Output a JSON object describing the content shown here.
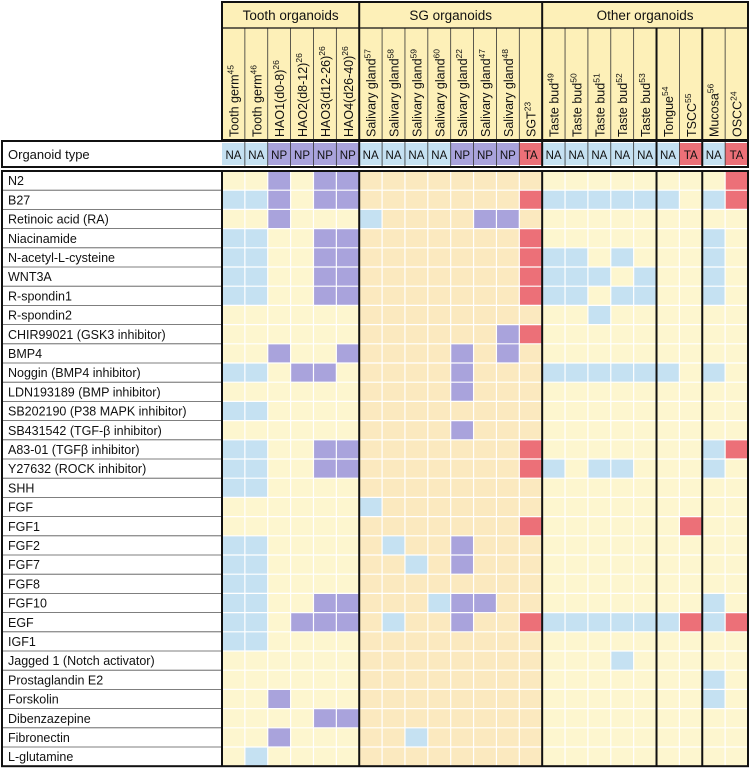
{
  "chart_data": {
    "type": "heatmap",
    "row_header": "Organoid type",
    "groups": [
      {
        "name": "Tooth organoids",
        "columns": [
          0,
          1,
          2,
          3,
          4,
          5
        ]
      },
      {
        "name": "SG organoids",
        "columns": [
          6,
          7,
          8,
          9,
          10,
          11,
          12,
          13
        ]
      },
      {
        "name": "Other organoids",
        "columns": [
          14,
          15,
          16,
          17,
          18,
          19,
          20,
          21,
          22
        ]
      }
    ],
    "columns": [
      {
        "label": "Tooth germ",
        "sup": "45",
        "type": "NA"
      },
      {
        "label": "Tooth germ",
        "sup": "46",
        "type": "NA"
      },
      {
        "label": "HAO1(d0-8)",
        "sup": "26",
        "type": "NP"
      },
      {
        "label": "HAO2(d8-12)",
        "sup": "26",
        "type": "NP"
      },
      {
        "label": "HAO3(d12-26)",
        "sup": "26",
        "type": "NP"
      },
      {
        "label": "HAO4(d26-40)",
        "sup": "26",
        "type": "NP"
      },
      {
        "label": "Salivary gland",
        "sup": "57",
        "type": "NA"
      },
      {
        "label": "Salivary gland",
        "sup": "58",
        "type": "NA"
      },
      {
        "label": "Salivary gland",
        "sup": "59",
        "type": "NA"
      },
      {
        "label": "Salivary gland",
        "sup": "60",
        "type": "NA"
      },
      {
        "label": "Salivary gland",
        "sup": "22",
        "type": "NP"
      },
      {
        "label": "Salivary gland",
        "sup": "47",
        "type": "NP"
      },
      {
        "label": "Salivary gland",
        "sup": "48",
        "type": "NP"
      },
      {
        "label": "SGT",
        "sup": "23",
        "type": "TA"
      },
      {
        "label": "Taste bud",
        "sup": "49",
        "type": "NA"
      },
      {
        "label": "Taste bud",
        "sup": "50",
        "type": "NA"
      },
      {
        "label": "Taste bud",
        "sup": "51",
        "type": "NA"
      },
      {
        "label": "Taste bud",
        "sup": "52",
        "type": "NA"
      },
      {
        "label": "Taste bud",
        "sup": "53",
        "type": "NA"
      },
      {
        "label": "Tongue",
        "sup": "54",
        "type": "NA"
      },
      {
        "label": "TSCC",
        "sup": "55",
        "type": "TA"
      },
      {
        "label": "Mucosa",
        "sup": "56",
        "type": "NA"
      },
      {
        "label": "OSCC",
        "sup": "24",
        "type": "TA"
      }
    ],
    "rows": [
      {
        "label": "N2",
        "present": [
          2,
          4,
          5,
          22
        ]
      },
      {
        "label": "B27",
        "present": [
          0,
          1,
          2,
          4,
          5,
          13,
          14,
          15,
          16,
          17,
          18,
          19,
          21,
          22
        ]
      },
      {
        "label": "Retinoic acid (RA)",
        "present": [
          2,
          6,
          11,
          12
        ]
      },
      {
        "label": "Niacinamide",
        "present": [
          0,
          1,
          4,
          5,
          13,
          21
        ]
      },
      {
        "label": "N-acetyl-L-cysteine",
        "present": [
          0,
          1,
          4,
          5,
          13,
          14,
          15,
          17,
          21
        ]
      },
      {
        "label": "WNT3A",
        "present": [
          0,
          1,
          4,
          5,
          13,
          14,
          15,
          16,
          18,
          21
        ]
      },
      {
        "label": "R-spondin1",
        "present": [
          0,
          1,
          4,
          5,
          13,
          14,
          15,
          17,
          18,
          21
        ]
      },
      {
        "label": "R-spondin2",
        "present": [
          16
        ]
      },
      {
        "label": "CHIR99021 (GSK3 inhibitor)",
        "present": [
          12,
          13
        ]
      },
      {
        "label": "BMP4",
        "present": [
          2,
          5,
          10,
          12
        ]
      },
      {
        "label": "Noggin (BMP4 inhibitor)",
        "present": [
          0,
          1,
          3,
          4,
          10,
          14,
          15,
          16,
          17,
          18,
          19,
          21
        ]
      },
      {
        "label": "LDN193189 (BMP inhibitor)",
        "present": [
          10
        ]
      },
      {
        "label": "SB202190 (P38 MAPK inhibitor)",
        "present": [
          0,
          1
        ]
      },
      {
        "label": "SB431542 (TGF-β inhibitor)",
        "present": [
          10
        ]
      },
      {
        "label": "A83-01 (TGFβ inhibitor)",
        "present": [
          0,
          1,
          4,
          5,
          13,
          21,
          22
        ]
      },
      {
        "label": "Y27632 (ROCK inhibitor)",
        "present": [
          0,
          1,
          4,
          5,
          13,
          14,
          16,
          17,
          21
        ]
      },
      {
        "label": "SHH",
        "present": [
          0,
          1
        ]
      },
      {
        "label": "FGF",
        "present": [
          6
        ]
      },
      {
        "label": "FGF1",
        "present": [
          13,
          20
        ]
      },
      {
        "label": "FGF2",
        "present": [
          0,
          1,
          7,
          10
        ]
      },
      {
        "label": "FGF7",
        "present": [
          0,
          1,
          8,
          10
        ]
      },
      {
        "label": "FGF8",
        "present": [
          0,
          1
        ]
      },
      {
        "label": "FGF10",
        "present": [
          0,
          1,
          4,
          5,
          9,
          10,
          11,
          21
        ]
      },
      {
        "label": "EGF",
        "present": [
          0,
          1,
          3,
          4,
          5,
          7,
          10,
          13,
          14,
          15,
          16,
          17,
          18,
          19,
          20,
          21,
          22
        ]
      },
      {
        "label": "IGF1",
        "present": [
          0,
          1
        ]
      },
      {
        "label": "Jagged 1 (Notch activator)",
        "present": [
          17
        ]
      },
      {
        "label": "Prostaglandin E2",
        "present": [
          21
        ]
      },
      {
        "label": "Forskolin",
        "present": [
          2,
          21
        ]
      },
      {
        "label": "Dibenzazepine",
        "present": [
          4,
          5
        ]
      },
      {
        "label": "Fibronectin",
        "present": [
          2,
          8
        ]
      },
      {
        "label": "L-glutamine",
        "present": [
          1
        ]
      }
    ],
    "type_colors": {
      "NA": "#c5e1f2",
      "NP": "#a9a3dc",
      "TA": "#ec7078"
    },
    "background_colors": {
      "header": "#fdf0b8",
      "cell": "#fdf6cf",
      "sg_cell": "#fbe9bf"
    }
  }
}
